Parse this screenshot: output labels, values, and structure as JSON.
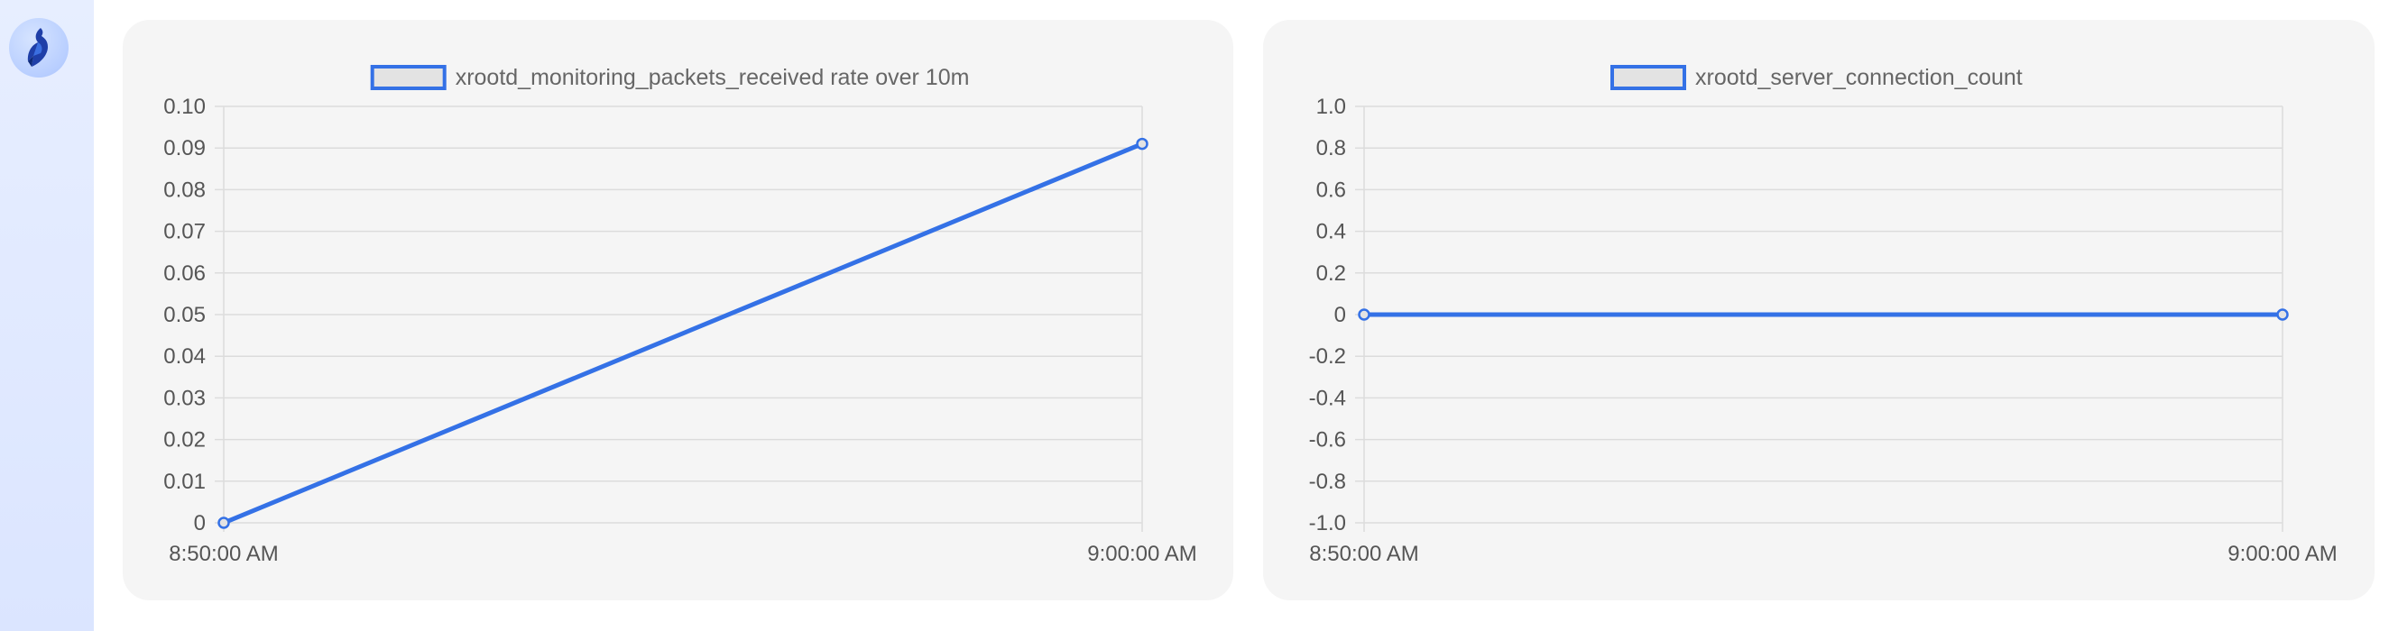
{
  "app": {
    "logo": "app-logo-icon"
  },
  "colors": {
    "series": "#3471e6",
    "legend_fill": "#e3e3e3",
    "grid": "#dcdcdc",
    "card_bg": "#f5f5f5"
  },
  "chart_data": [
    {
      "type": "line",
      "title": "",
      "legend": [
        "xrootd_monitoring_packets_received rate over 10m"
      ],
      "legend_position": "top-center",
      "categories": [
        "8:50:00 AM",
        "9:00:00 AM"
      ],
      "x_tick_labels": [
        "8:50:00 AM",
        "9:00:00 AM"
      ],
      "series": [
        {
          "name": "xrootd_monitoring_packets_received rate over 10m",
          "values": [
            0,
            0.091
          ]
        }
      ],
      "ylim": [
        0,
        0.1
      ],
      "y_tick_labels": [
        "0.10",
        "0.09",
        "0.08",
        "0.07",
        "0.06",
        "0.05",
        "0.04",
        "0.03",
        "0.02",
        "0.01",
        "0"
      ],
      "y_tick_values": [
        0.1,
        0.09,
        0.08,
        0.07,
        0.06,
        0.05,
        0.04,
        0.03,
        0.02,
        0.01,
        0
      ],
      "grid": true,
      "xlabel": "",
      "ylabel": ""
    },
    {
      "type": "line",
      "title": "",
      "legend": [
        "xrootd_server_connection_count"
      ],
      "legend_position": "top-center",
      "categories": [
        "8:50:00 AM",
        "9:00:00 AM"
      ],
      "x_tick_labels": [
        "8:50:00 AM",
        "9:00:00 AM"
      ],
      "series": [
        {
          "name": "xrootd_server_connection_count",
          "values": [
            0,
            0
          ]
        }
      ],
      "ylim": [
        -1.0,
        1.0
      ],
      "y_tick_labels": [
        "1.0",
        "0.8",
        "0.6",
        "0.4",
        "0.2",
        "0",
        "-0.2",
        "-0.4",
        "-0.6",
        "-0.8",
        "-1.0"
      ],
      "y_tick_values": [
        1.0,
        0.8,
        0.6,
        0.4,
        0.2,
        0,
        -0.2,
        -0.4,
        -0.6,
        -0.8,
        -1.0
      ],
      "grid": true,
      "xlabel": "",
      "ylabel": ""
    }
  ]
}
